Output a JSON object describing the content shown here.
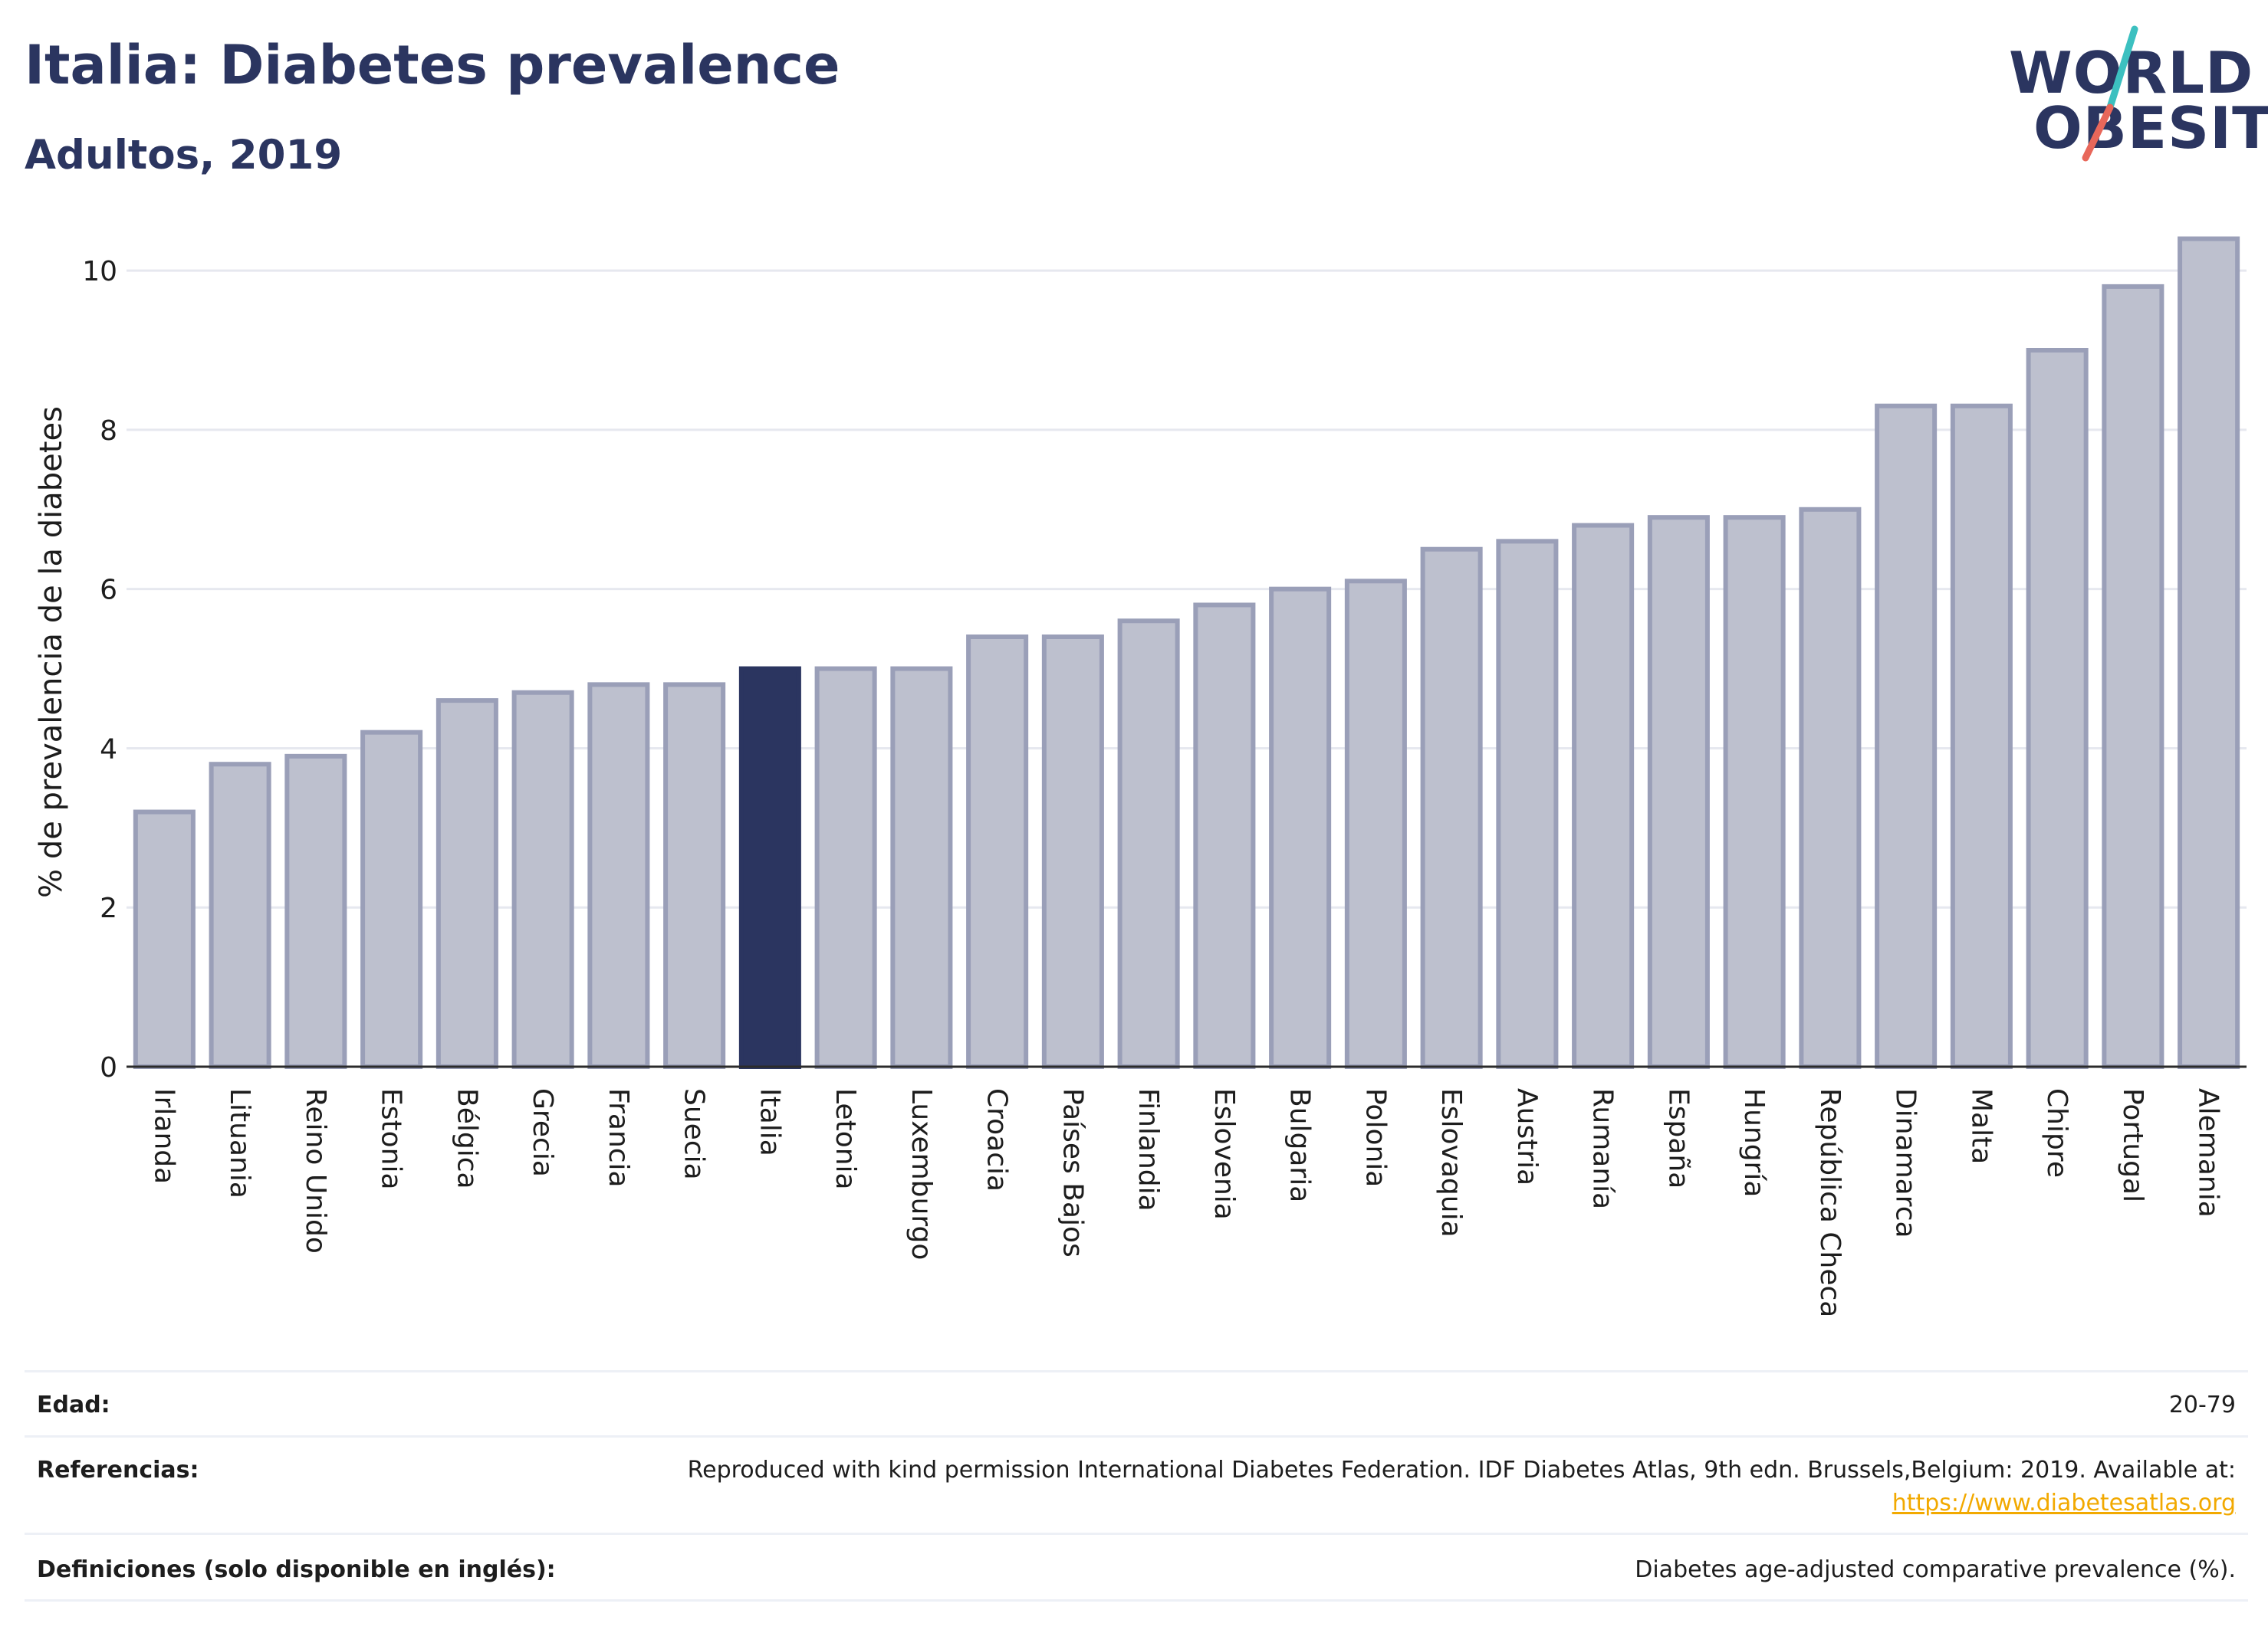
{
  "header": {
    "title": "Italia: Diabetes prevalence",
    "subtitle": "Adultos, 2019"
  },
  "logo": {
    "line1": "WORLD",
    "line2": "OBESITY",
    "slash_colors": [
      "#3cc0c0",
      "#e8675a"
    ]
  },
  "chart_data": {
    "type": "bar",
    "ylabel": "% de prevalencia de la diabetes",
    "xlabel": "",
    "ylim": [
      0,
      10.8
    ],
    "yticks": [
      0,
      2,
      4,
      6,
      8,
      10
    ],
    "grid": true,
    "highlight": "Italia",
    "colors": {
      "bar": "#bdc0ce",
      "bar_edge": "#9a9fb8",
      "highlight": "#2b3560"
    },
    "categories": [
      "Irlanda",
      "Lituania",
      "Reino Unido",
      "Estonia",
      "Bélgica",
      "Grecia",
      "Francia",
      "Suecia",
      "Italia",
      "Letonia",
      "Luxemburgo",
      "Croacia",
      "Países Bajos",
      "Finlandia",
      "Eslovenia",
      "Bulgaria",
      "Polonia",
      "Eslovaquia",
      "Austria",
      "Rumanía",
      "España",
      "Hungría",
      "República Checa",
      "Dinamarca",
      "Malta",
      "Chipre",
      "Portugal",
      "Alemania"
    ],
    "values": [
      3.2,
      3.8,
      3.9,
      4.2,
      4.6,
      4.7,
      4.8,
      4.8,
      5.0,
      5.0,
      5.0,
      5.4,
      5.4,
      5.6,
      5.8,
      6.0,
      6.1,
      6.5,
      6.6,
      6.8,
      6.9,
      6.9,
      7.0,
      8.3,
      8.3,
      9.0,
      9.8,
      10.4
    ]
  },
  "footer": {
    "rows": [
      {
        "label": "Edad:",
        "value": "20-79"
      },
      {
        "label": "Referencias:",
        "value": "Reproduced with kind permission International Diabetes Federation. IDF Diabetes Atlas, 9th edn. Brussels,Belgium: 2019. Available at:",
        "link": "https://www.diabetesatlas.org"
      },
      {
        "label": "Definiciones (solo disponible en inglés):",
        "value": "Diabetes age-adjusted comparative prevalence (%)."
      }
    ]
  }
}
